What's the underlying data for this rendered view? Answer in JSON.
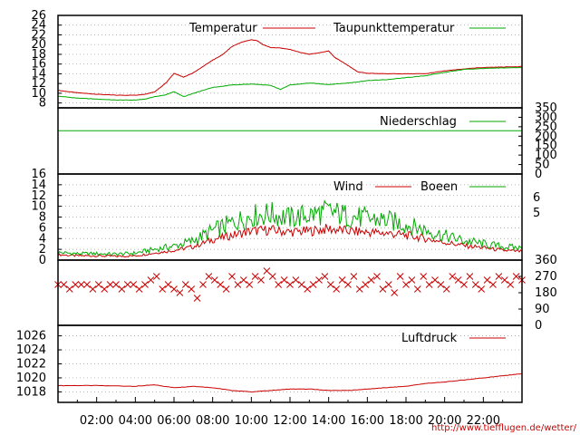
{
  "chart_data": [
    {
      "type": "line",
      "panel": "temperature",
      "legend_placement": "top-right",
      "grid": true,
      "ylim": [
        7,
        26
      ],
      "y_ticks": [
        "26",
        "24",
        "22",
        "20",
        "18",
        "16",
        "14",
        "12",
        "10",
        "8"
      ],
      "series": [
        {
          "name": "Temperatur",
          "color": "#cc0000",
          "x": [
            0,
            1,
            2,
            3,
            4,
            4.5,
            5,
            5.3,
            5.6,
            6,
            6.5,
            7,
            7.5,
            8,
            8.5,
            9,
            9.5,
            10,
            10.3,
            10.6,
            11,
            11.5,
            12,
            12.5,
            13,
            13.5,
            14,
            14.3,
            14.6,
            15,
            15.5,
            16,
            17,
            18,
            19,
            20,
            21,
            22,
            23,
            24
          ],
          "y": [
            10.6,
            10.1,
            9.8,
            9.6,
            9.6,
            9.8,
            10.3,
            11.2,
            12.2,
            14.1,
            13.3,
            14.2,
            15.5,
            16.8,
            17.9,
            19.6,
            20.5,
            21.0,
            20.8,
            20.0,
            19.4,
            19.3,
            19.0,
            18.4,
            18.0,
            18.3,
            18.7,
            17.4,
            16.7,
            15.7,
            14.4,
            14.1,
            14.0,
            14.0,
            14.0,
            14.6,
            15.0,
            15.3,
            15.4,
            15.5
          ]
        },
        {
          "name": "Taupunkttemperatur",
          "color": "#00aa00",
          "x": [
            0,
            1,
            2,
            3,
            4,
            4.5,
            5,
            5.5,
            6,
            6.5,
            7,
            8,
            9,
            10,
            11,
            11.5,
            12,
            13,
            14,
            15,
            16,
            17,
            18,
            19,
            20,
            21,
            22,
            23,
            24
          ],
          "y": [
            9.4,
            9.0,
            8.8,
            8.6,
            8.6,
            8.8,
            9.3,
            9.6,
            10.3,
            9.3,
            10.0,
            11.2,
            11.7,
            11.9,
            11.6,
            10.8,
            11.7,
            12.1,
            11.8,
            12.1,
            12.6,
            12.8,
            13.2,
            13.6,
            14.3,
            14.9,
            15.1,
            15.2,
            15.3
          ]
        }
      ]
    },
    {
      "type": "line",
      "panel": "precipitation",
      "legend_placement": "top-right",
      "ylim": [
        0,
        350
      ],
      "y_ticks": [
        "350",
        "300",
        "250",
        "200",
        "150",
        "100",
        "50",
        "0"
      ],
      "series": [
        {
          "name": "Niederschlag",
          "color": "#00aa00",
          "x": [
            0,
            24
          ],
          "y": [
            228.6,
            228.6
          ]
        }
      ]
    },
    {
      "type": "line",
      "panel": "wind",
      "legend_placement": "top-right",
      "grid": true,
      "ylim": [
        0,
        16
      ],
      "y_ticks": [
        "16",
        "14",
        "12",
        "10",
        "8",
        "6",
        "4",
        "2",
        "0"
      ],
      "right_ticks": [
        "6",
        "5"
      ],
      "series": [
        {
          "name": "Wind",
          "color": "#cc0000",
          "x": [
            0,
            1,
            2,
            3,
            4,
            5,
            6,
            7,
            8,
            9,
            10,
            11,
            12,
            13,
            14,
            15,
            16,
            17,
            18,
            19,
            20,
            21,
            22,
            23,
            24
          ],
          "y": [
            1.0,
            0.8,
            0.8,
            0.7,
            0.8,
            1.3,
            1.8,
            2.5,
            3.8,
            4.6,
            5.4,
            5.6,
            5.2,
            5.4,
            5.8,
            5.4,
            5.2,
            5.0,
            4.6,
            4.0,
            3.3,
            2.7,
            2.3,
            1.8,
            1.6
          ]
        },
        {
          "name": "Boeen",
          "color": "#00aa00",
          "x": [
            0,
            1,
            2,
            3,
            4,
            5,
            6,
            7,
            8,
            9,
            10,
            11,
            12,
            13,
            14,
            15,
            16,
            17,
            18,
            19,
            20,
            21,
            22,
            23,
            24
          ],
          "y": [
            1.4,
            1.2,
            1.2,
            1.1,
            1.3,
            2.0,
            2.6,
            3.6,
            5.5,
            6.9,
            8.2,
            8.6,
            7.8,
            8.4,
            9.0,
            8.2,
            7.7,
            7.4,
            6.6,
            5.6,
            4.5,
            3.6,
            3.0,
            2.5,
            2.2
          ]
        }
      ]
    },
    {
      "type": "scatter",
      "panel": "wind-direction",
      "ylim": [
        0,
        360
      ],
      "y_ticks": [
        "360",
        "270",
        "180",
        "90",
        "0"
      ],
      "series": [
        {
          "color": "#cc0000",
          "x": [
            0,
            0.3,
            0.6,
            0.9,
            1.2,
            1.5,
            1.8,
            2.1,
            2.4,
            2.7,
            3,
            3.3,
            3.6,
            3.9,
            4.2,
            4.5,
            4.8,
            5.1,
            5.4,
            5.7,
            6,
            6.3,
            6.6,
            6.9,
            7.2,
            7.5,
            7.8,
            8.1,
            8.4,
            8.7,
            9,
            9.3,
            9.6,
            9.9,
            10.2,
            10.5,
            10.8,
            11.1,
            11.4,
            11.7,
            12,
            12.3,
            12.6,
            12.9,
            13.2,
            13.5,
            13.8,
            14.1,
            14.4,
            14.7,
            15,
            15.3,
            15.6,
            15.9,
            16.2,
            16.5,
            16.8,
            17.1,
            17.4,
            17.7,
            18,
            18.3,
            18.6,
            18.9,
            19.2,
            19.5,
            19.8,
            20.1,
            20.4,
            20.7,
            21,
            21.3,
            21.6,
            21.9,
            22.2,
            22.5,
            22.8,
            23.1,
            23.4,
            23.7,
            24
          ],
          "y": [
            225,
            225,
            200,
            225,
            225,
            225,
            200,
            225,
            200,
            225,
            225,
            200,
            225,
            225,
            200,
            225,
            250,
            270,
            200,
            225,
            200,
            180,
            225,
            200,
            150,
            225,
            270,
            250,
            225,
            200,
            270,
            225,
            250,
            225,
            270,
            250,
            300,
            270,
            225,
            250,
            225,
            250,
            225,
            200,
            225,
            250,
            270,
            225,
            200,
            250,
            225,
            270,
            200,
            225,
            250,
            270,
            200,
            225,
            180,
            270,
            225,
            250,
            200,
            270,
            225,
            250,
            225,
            200,
            270,
            250,
            225,
            270,
            225,
            200,
            250,
            225,
            270,
            250,
            225,
            270,
            250
          ]
        }
      ]
    },
    {
      "type": "line",
      "panel": "pressure",
      "legend_placement": "top-right",
      "grid": true,
      "ylim": [
        1016.5,
        1027.5
      ],
      "y_ticks": [
        "1026",
        "1024",
        "1022",
        "1020",
        "1018"
      ],
      "series": [
        {
          "name": "Luftdruck",
          "color": "#cc0000",
          "x": [
            0,
            2,
            4,
            5,
            6,
            7,
            8,
            9,
            10,
            11,
            12,
            13,
            14,
            15,
            16,
            17,
            18,
            19,
            20,
            21,
            22,
            23,
            24
          ],
          "y": [
            1018.9,
            1018.9,
            1018.8,
            1019.0,
            1018.6,
            1018.8,
            1018.6,
            1018.2,
            1018.0,
            1018.2,
            1018.4,
            1018.4,
            1018.2,
            1018.2,
            1018.4,
            1018.6,
            1018.8,
            1019.2,
            1019.4,
            1019.7,
            1020.0,
            1020.3,
            1020.6
          ]
        }
      ]
    }
  ],
  "x_axis_labels": [
    "02:00",
    "04:00",
    "06:00",
    "08:00",
    "10:00",
    "12:00",
    "14:00",
    "16:00",
    "18:00",
    "20:00",
    "22:00"
  ],
  "x_hours": [
    2,
    4,
    6,
    8,
    10,
    12,
    14,
    16,
    18,
    20,
    22
  ],
  "source_url": "http://www.tiefflugen.de/wetter/"
}
